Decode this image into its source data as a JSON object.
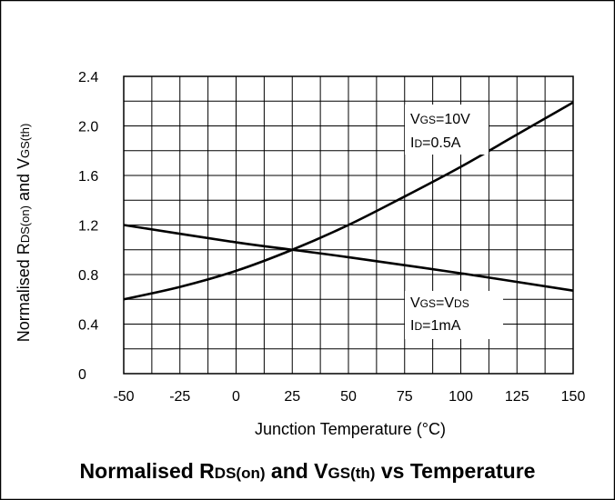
{
  "chart_data": {
    "type": "line",
    "xlabel": "Junction Temperature (°C)",
    "ylabel": {
      "pre": "Normalised R",
      "sub1": "DS(on)",
      "mid": " and V",
      "sub2": "GS(th)"
    },
    "title": {
      "pre": "Normalised R",
      "sub1": "DS(on)",
      "mid": " and V",
      "sub2": "GS(th)",
      "post": " vs Temperature"
    },
    "xlim": [
      -50,
      150
    ],
    "ylim": [
      0,
      2.4
    ],
    "x_ticks": [
      "-50",
      "-25",
      "0",
      "25",
      "50",
      "75",
      "100",
      "125",
      "150"
    ],
    "y_ticks": [
      "0",
      "0.4",
      "0.8",
      "1.2",
      "1.6",
      "2.0",
      "2.4"
    ],
    "grid": true,
    "series": [
      {
        "x": [
          -50,
          -25,
          0,
          25,
          50,
          75,
          100,
          125,
          150
        ],
        "y": [
          0.6,
          0.7,
          0.83,
          1.0,
          1.2,
          1.43,
          1.67,
          1.93,
          2.19
        ],
        "labels": [
          {
            "pre": "V",
            "sub": "GS",
            "post": "=10V"
          },
          {
            "pre": "I",
            "sub": "D",
            "post": "=0.5A"
          }
        ]
      },
      {
        "x": [
          -50,
          0,
          25,
          50,
          100,
          150
        ],
        "y": [
          1.2,
          1.06,
          1.0,
          0.94,
          0.81,
          0.67
        ],
        "labels": [
          {
            "pre": "V",
            "sub": "GS",
            "post": "=V",
            "sub2": "DS"
          },
          {
            "pre": "I",
            "sub": "D",
            "post": "=1mA"
          }
        ]
      }
    ]
  }
}
